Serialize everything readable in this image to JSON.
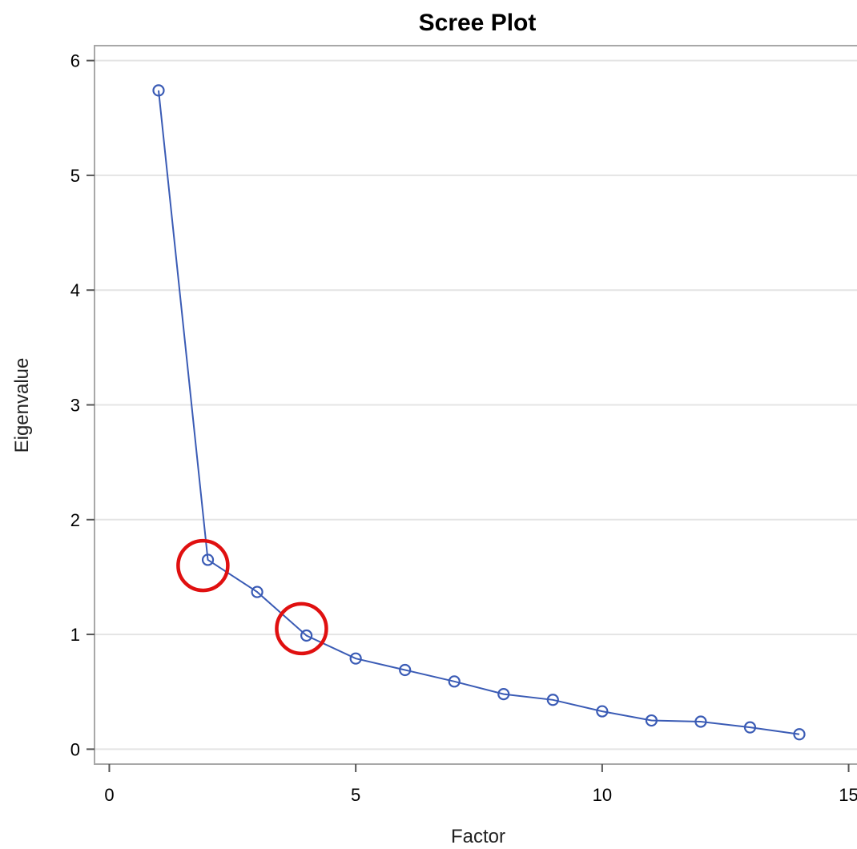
{
  "chart_data": {
    "type": "line",
    "title": "Scree Plot",
    "xlabel": "Factor",
    "ylabel": "Eigenvalue",
    "xlim": [
      -0.3,
      15.3
    ],
    "ylim": [
      -0.13,
      6.13
    ],
    "x_ticks": [
      0,
      5,
      10,
      15
    ],
    "y_ticks": [
      0,
      1,
      2,
      3,
      4,
      5,
      6
    ],
    "grid": "horizontal",
    "legend": "none",
    "series": [
      {
        "x": [
          1,
          2,
          3,
          4,
          5,
          6,
          7,
          8,
          9,
          10,
          11,
          12,
          13,
          14
        ],
        "values": [
          5.74,
          1.65,
          1.37,
          0.99,
          0.79,
          0.69,
          0.59,
          0.48,
          0.43,
          0.33,
          0.25,
          0.24,
          0.19,
          0.13
        ],
        "color": "#3a5bb5",
        "marker": "open-circle"
      }
    ],
    "annotations": [
      {
        "type": "circle-highlight",
        "x": 1.9,
        "y": 1.6,
        "color": "#e01010"
      },
      {
        "type": "circle-highlight",
        "x": 3.9,
        "y": 1.05,
        "color": "#e01010"
      }
    ]
  }
}
